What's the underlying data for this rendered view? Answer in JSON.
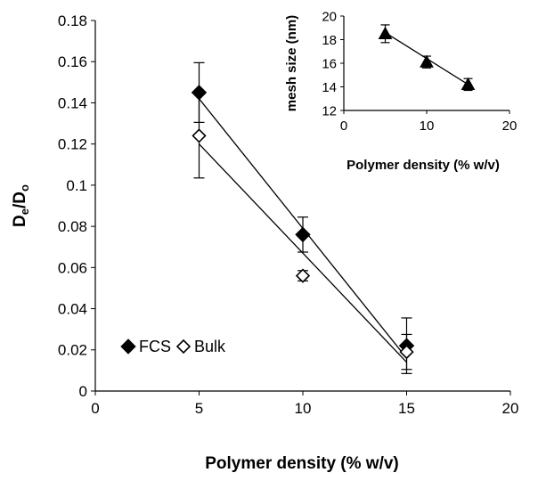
{
  "chart_data": [
    {
      "id": "main",
      "type": "scatter",
      "title": "",
      "xlabel": "Polymer density (% w/v)",
      "ylabel": {
        "main": "D",
        "sub1": "e",
        "mid": "/D",
        "sub2": "o"
      },
      "xlim": [
        0,
        20
      ],
      "ylim": [
        0,
        0.18
      ],
      "xticks": [
        0,
        5,
        10,
        15,
        20
      ],
      "xtick_labels": [
        "0",
        "5",
        "10",
        "15",
        "20"
      ],
      "yticks": [
        0,
        0.02,
        0.04,
        0.06,
        0.08,
        0.1,
        0.12,
        0.14,
        0.16,
        0.18
      ],
      "ytick_labels": [
        "0",
        "0.02",
        "0.04",
        "0.06",
        "0.08",
        "0.1",
        "0.12",
        "0.14",
        "0.16",
        "0.18"
      ],
      "grid": false,
      "legend_position": "bottom-left",
      "series": [
        {
          "name": "FCS",
          "marker": "filled-diamond",
          "x": [
            5,
            10,
            15
          ],
          "y": [
            0.145,
            0.076,
            0.022
          ],
          "error": [
            0.0145,
            0.0085,
            0.0135
          ],
          "fit": {
            "x": [
              5,
              15
            ],
            "y": [
              0.142,
              0.016
            ]
          }
        },
        {
          "name": "Bulk",
          "marker": "open-diamond",
          "x": [
            5,
            10,
            15
          ],
          "y": [
            0.124,
            0.056,
            0.019
          ],
          "error": [
            0.0205,
            0.0025,
            0.0085
          ],
          "fit": {
            "x": [
              5,
              15
            ],
            "y": [
              0.12,
              0.014
            ]
          }
        }
      ]
    },
    {
      "id": "inset",
      "type": "scatter",
      "title": "",
      "xlabel": "Polymer density (% w/v)",
      "ylabel": "mesh size (nm)",
      "xlim": [
        0,
        20
      ],
      "ylim": [
        12,
        20
      ],
      "xticks": [
        0,
        10,
        20
      ],
      "xtick_labels": [
        "0",
        "10",
        "20"
      ],
      "yticks": [
        12,
        14,
        16,
        18,
        20
      ],
      "ytick_labels": [
        "12",
        "14",
        "16",
        "18",
        "20"
      ],
      "grid": false,
      "series": [
        {
          "name": "",
          "marker": "filled-triangle",
          "x": [
            5,
            10,
            15
          ],
          "y": [
            18.5,
            16.1,
            14.2
          ],
          "error": [
            0.75,
            0.5,
            0.5
          ],
          "fit": {
            "x": [
              5,
              15
            ],
            "y": [
              18.6,
              14.2
            ]
          }
        }
      ]
    }
  ]
}
